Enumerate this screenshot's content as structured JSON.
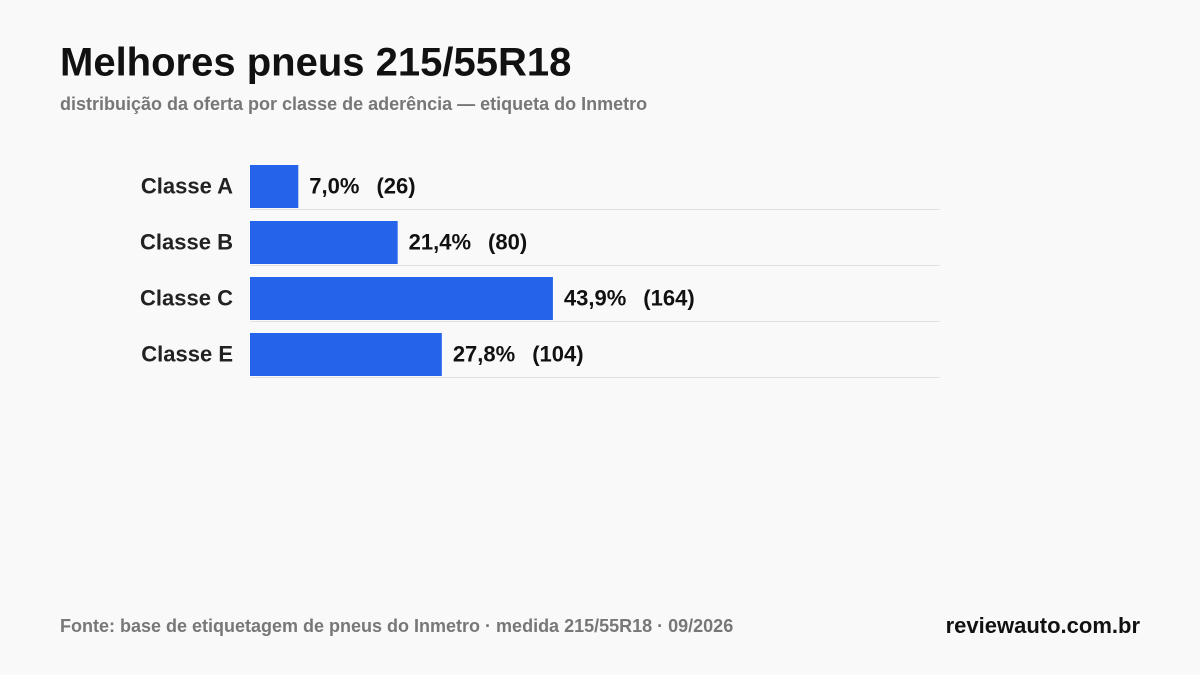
{
  "chart_data": {
    "type": "bar",
    "orientation": "horizontal",
    "title": "Melhores pneus 215/55R18",
    "subtitle": "distribuição da oferta por classe de aderência — etiqueta do Inmetro",
    "categories": [
      "Classe A",
      "Classe B",
      "Classe C",
      "Classe E"
    ],
    "values": [
      7.0,
      21.4,
      43.9,
      27.8
    ],
    "value_labels": [
      "7,0%",
      "21,4%",
      "43,9%",
      "27,8%"
    ],
    "counts": [
      26,
      80,
      164,
      104
    ],
    "count_labels": [
      "(26)",
      "(80)",
      "(164)",
      "(104)"
    ],
    "color": "#2563eb",
    "source": "Fonte: base de etiquetagem de pneus do Inmetro · medida 215/55R18 · 09/2026",
    "brand": "reviewauto.com.br"
  }
}
